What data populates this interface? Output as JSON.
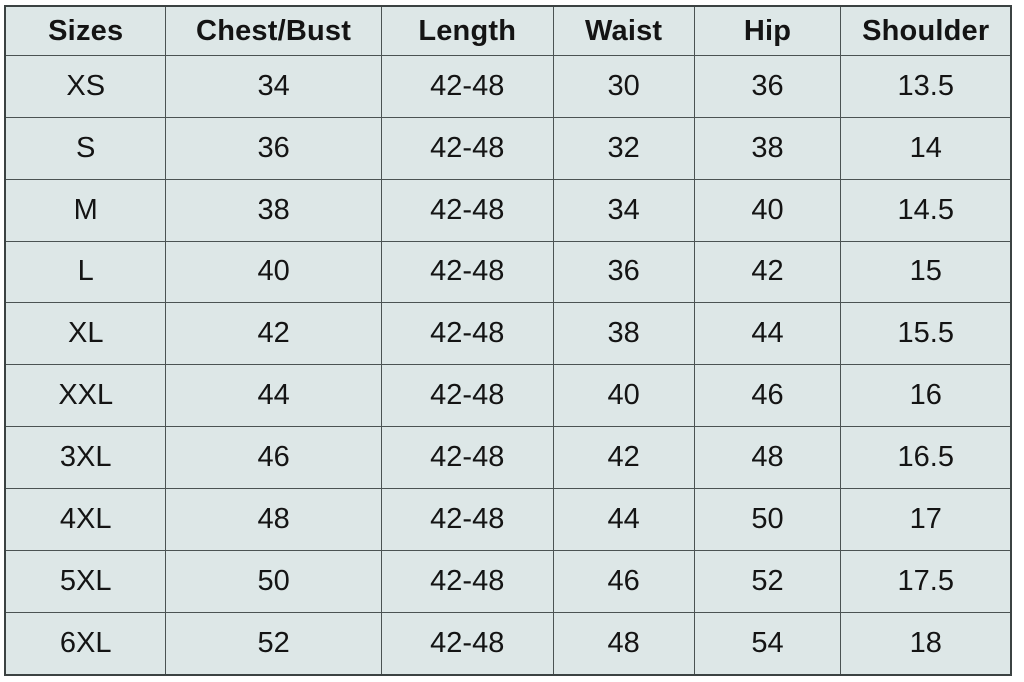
{
  "colors": {
    "page_background": "#ffffff",
    "cell_background": "#dde7e7",
    "grid_line": "#4b5353",
    "outer_border": "#3b4242",
    "text": "#141414"
  },
  "chart_data": {
    "type": "table",
    "title": "",
    "columns": [
      "Sizes",
      "Chest/Bust",
      "Length",
      "Waist",
      "Hip",
      "Shoulder"
    ],
    "rows": [
      [
        "XS",
        "34",
        "42-48",
        "30",
        "36",
        "13.5"
      ],
      [
        "S",
        "36",
        "42-48",
        "32",
        "38",
        "14"
      ],
      [
        "M",
        "38",
        "42-48",
        "34",
        "40",
        "14.5"
      ],
      [
        "L",
        "40",
        "42-48",
        "36",
        "42",
        "15"
      ],
      [
        "XL",
        "42",
        "42-48",
        "38",
        "44",
        "15.5"
      ],
      [
        "XXL",
        "44",
        "42-48",
        "40",
        "46",
        "16"
      ],
      [
        "3XL",
        "46",
        "42-48",
        "42",
        "48",
        "16.5"
      ],
      [
        "4XL",
        "48",
        "42-48",
        "44",
        "50",
        "17"
      ],
      [
        "5XL",
        "50",
        "42-48",
        "46",
        "52",
        "17.5"
      ],
      [
        "6XL",
        "52",
        "42-48",
        "48",
        "54",
        "18"
      ]
    ]
  }
}
